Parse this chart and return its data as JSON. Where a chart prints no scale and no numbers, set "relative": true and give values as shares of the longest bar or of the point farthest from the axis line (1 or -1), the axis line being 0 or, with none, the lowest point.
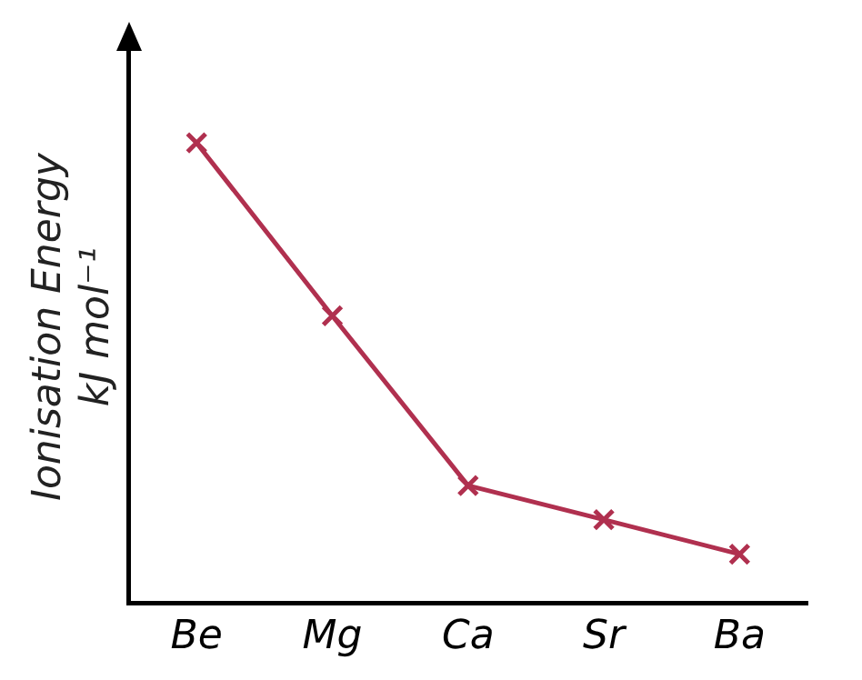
{
  "chart_data": {
    "type": "line",
    "relative": true,
    "ylabel": "Ionisation Energy\nkJ mol⁻¹",
    "categories": [
      "Be",
      "Mg",
      "Ca",
      "Sr",
      "Ba"
    ],
    "series": [
      {
        "color": "#b0304f",
        "values": [
          1,
          0.624,
          0.255,
          0.181,
          0.106
        ]
      }
    ],
    "marker": "cross",
    "line_style": "solid",
    "grid": false,
    "legend": false
  }
}
